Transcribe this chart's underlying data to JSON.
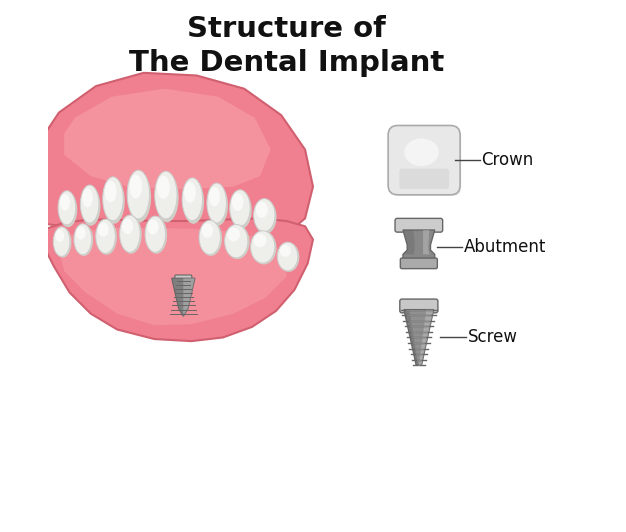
{
  "title_line1": "Structure of",
  "title_line2": "The Dental Implant",
  "title_fontsize": 21,
  "title_fontweight": "bold",
  "background_color": "#ffffff",
  "gum_light": "#f7a0a8",
  "gum_mid": "#f08090",
  "gum_dark": "#d06070",
  "gum_highlight": "#fcc0c8",
  "tooth_white": "#f8f8f5",
  "tooth_light": "#eeeeea",
  "tooth_shadow": "#d0d0c8",
  "tooth_highlight": "#ffffff",
  "crown_top": "#e8e8e8",
  "crown_mid": "#d0d0d0",
  "crown_base": "#b8b8b8",
  "abut_top": "#aaaaaa",
  "abut_mid": "#888888",
  "abut_dark": "#666666",
  "abut_light": "#cccccc",
  "screw_top": "#aaaaaa",
  "screw_mid": "#909090",
  "screw_dark": "#666666",
  "screw_light": "#c8c8c8",
  "label_crown": "Crown",
  "label_abutment": "Abutment",
  "label_screw": "Screw",
  "label_fontsize": 12,
  "line_color": "#444444",
  "figsize": [
    6.26,
    5.32
  ],
  "dpi": 100
}
